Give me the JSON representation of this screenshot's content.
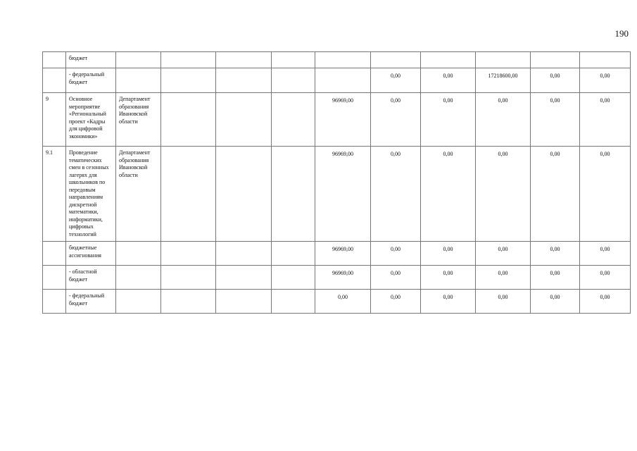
{
  "page_number": "190",
  "rows": [
    {
      "num": "",
      "name": "бюджет",
      "executor": "",
      "values": [
        "",
        "",
        "",
        "",
        "",
        "",
        "",
        "",
        "",
        ""
      ]
    },
    {
      "num": "",
      "name": "- федеральный бюджет",
      "executor": "",
      "values": [
        "",
        "",
        "",
        "",
        "0,00",
        "0,00",
        "17218600,00",
        "0,00",
        "0,00",
        ""
      ]
    },
    {
      "num": "9",
      "name": "Основное мероприятие «Региональный проект «Кадры для цифровой экономики»",
      "executor": "Департамент образования Ивановской области",
      "values": [
        "",
        "",
        "",
        "96969,00",
        "0,00",
        "0,00",
        "0,00",
        "0,00",
        "0,00",
        ""
      ]
    },
    {
      "num": "9.1",
      "name": "Проведение тематических смен в сезонных лагерях для школьников по передовым направлениям дискретной математики, информатики, цифровых технологий",
      "executor": "Департамент образования Ивановской области",
      "values": [
        "",
        "",
        "",
        "96969,00",
        "0,00",
        "0,00",
        "0,00",
        "0,00",
        "0,00",
        ""
      ]
    },
    {
      "num": "",
      "name": "бюджетные ассигнования",
      "executor": "",
      "values": [
        "",
        "",
        "",
        "96969,00",
        "0,00",
        "0,00",
        "0,00",
        "0,00",
        "0,00",
        ""
      ]
    },
    {
      "num": "",
      "name": "- областной бюджет",
      "executor": "",
      "values": [
        "",
        "",
        "",
        "96969,00",
        "0,00",
        "0,00",
        "0,00",
        "0,00",
        "0,00",
        ""
      ]
    },
    {
      "num": "",
      "name": "- федеральный бюджет",
      "executor": "",
      "values": [
        "",
        "",
        "",
        "0,00",
        "0,00",
        "0,00",
        "0,00",
        "0,00",
        "0,00",
        ""
      ]
    }
  ]
}
